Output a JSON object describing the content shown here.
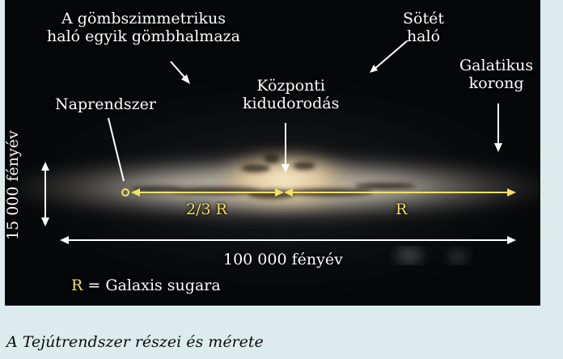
{
  "labels": {
    "globular_cluster": [
      "A gömbszimmetrikus",
      "haló egyik gömbhalmaza"
    ],
    "dark_halo": [
      "Sötét",
      "haló"
    ],
    "galactic_disk": [
      "Galatikus",
      "korong"
    ],
    "central_bulge": [
      "Központi",
      "kidudorodás"
    ],
    "solar_system": "Naprendszer",
    "height": "15 000 fényév",
    "sun_distance": "2/3 R",
    "radius": "R",
    "diameter": "100 000 fényév",
    "legend_symbol": "R",
    "legend_text": "= Galaxis sugara"
  },
  "caption": "A Tejútrendszer részei és mérete",
  "colors": {
    "background": "#dcecec",
    "figure": "#060708",
    "accent_yellow": "#f2e266",
    "arrow_white": "#ffffff"
  }
}
